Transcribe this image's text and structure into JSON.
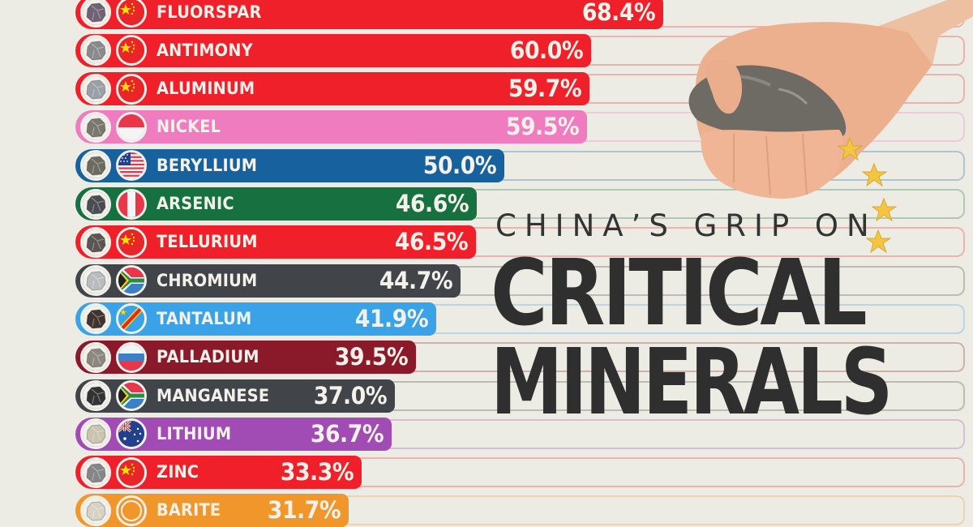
{
  "title": {
    "subtitle": "CHINA’S GRIP ON",
    "line1": "CRITICAL",
    "line2": "MINERALS"
  },
  "colors": {
    "background": "#ECEBE4",
    "china_red": "#F0202A",
    "indonesia_pink": "#F07CC0",
    "usa_blue": "#16619E",
    "peru_green": "#16703F",
    "south_africa_gray": "#414448",
    "drc_light_blue": "#3AA3E8",
    "russia_maroon": "#8A1A2A",
    "australia_purple": "#A04CB4",
    "barite_orange": "#F0962A",
    "star_gold": "#F5C542",
    "title_text": "#2F2F2F"
  },
  "rows": [
    {
      "mineral": "FLUORSPAR",
      "value": "68.4%",
      "country": "China",
      "flag_icon": "flag-china-icon",
      "color": "#F0202A",
      "mineral_tint": "#6f6275"
    },
    {
      "mineral": "ANTIMONY",
      "value": "60.0%",
      "country": "China",
      "flag_icon": "flag-china-icon",
      "color": "#F0202A",
      "mineral_tint": "#8a8a8c"
    },
    {
      "mineral": "ALUMINUM",
      "value": "59.7%",
      "country": "China",
      "flag_icon": "flag-china-icon",
      "color": "#F0202A",
      "mineral_tint": "#9aa0a8"
    },
    {
      "mineral": "NICKEL",
      "value": "59.5%",
      "country": "Indonesia",
      "flag_icon": "flag-indonesia-icon",
      "color": "#F07CC0",
      "mineral_tint": "#7a786e"
    },
    {
      "mineral": "BERYLLIUM",
      "value": "50.0%",
      "country": "United States",
      "flag_icon": "flag-usa-icon",
      "color": "#16619E",
      "mineral_tint": "#6b6b5e"
    },
    {
      "mineral": "ARSENIC",
      "value": "46.6%",
      "country": "Peru",
      "flag_icon": "flag-peru-icon",
      "color": "#16703F",
      "mineral_tint": "#4a4d52"
    },
    {
      "mineral": "TELLURIUM",
      "value": "46.5%",
      "country": "China",
      "flag_icon": "flag-china-icon",
      "color": "#F0202A",
      "mineral_tint": "#5a5552"
    },
    {
      "mineral": "CHROMIUM",
      "value": "44.7%",
      "country": "South Africa",
      "flag_icon": "flag-south-africa-icon",
      "color": "#414448",
      "mineral_tint": "#b8bcc0"
    },
    {
      "mineral": "TANTALUM",
      "value": "41.9%",
      "country": "DR Congo",
      "flag_icon": "flag-drc-icon",
      "color": "#3AA3E8",
      "mineral_tint": "#3f352e"
    },
    {
      "mineral": "PALLADIUM",
      "value": "39.5%",
      "country": "Russia",
      "flag_icon": "flag-russia-icon",
      "color": "#8A1A2A",
      "mineral_tint": "#8c8880"
    },
    {
      "mineral": "MANGANESE",
      "value": "37.0%",
      "country": "South Africa",
      "flag_icon": "flag-south-africa-icon",
      "color": "#414448",
      "mineral_tint": "#333333"
    },
    {
      "mineral": "LITHIUM",
      "value": "36.7%",
      "country": "Australia",
      "flag_icon": "flag-australia-icon",
      "color": "#A04CB4",
      "mineral_tint": "#c9c3b0"
    },
    {
      "mineral": "ZINC",
      "value": "33.3%",
      "country": "China",
      "flag_icon": "flag-china-icon",
      "color": "#F0202A",
      "mineral_tint": "#85858a"
    },
    {
      "mineral": "BARITE",
      "value": "31.7%",
      "country": "",
      "flag_icon": "flag-icon",
      "color": "#F0962A",
      "mineral_tint": "#d8d2c4"
    }
  ],
  "chart_data": {
    "type": "bar",
    "orientation": "horizontal",
    "title": "China’s Grip on Critical Minerals",
    "xlabel": "",
    "ylabel": "",
    "categories": [
      "Fluorspar",
      "Antimony",
      "Aluminum",
      "Nickel",
      "Beryllium",
      "Arsenic",
      "Tellurium",
      "Chromium",
      "Tantalum",
      "Palladium",
      "Manganese",
      "Lithium",
      "Zinc",
      "Barite"
    ],
    "values": [
      68.4,
      60.0,
      59.7,
      59.5,
      50.0,
      46.6,
      46.5,
      44.7,
      41.9,
      39.5,
      37.0,
      36.7,
      33.3,
      31.7
    ],
    "value_unit": "%",
    "top_producer_country": [
      "China",
      "China",
      "China",
      "Indonesia",
      "United States",
      "Peru",
      "China",
      "South Africa",
      "DR Congo",
      "Russia",
      "South Africa",
      "Australia",
      "China",
      ""
    ],
    "xlim": [
      0,
      100
    ],
    "grid": false,
    "legend": "none (country flags shown per bar)"
  }
}
